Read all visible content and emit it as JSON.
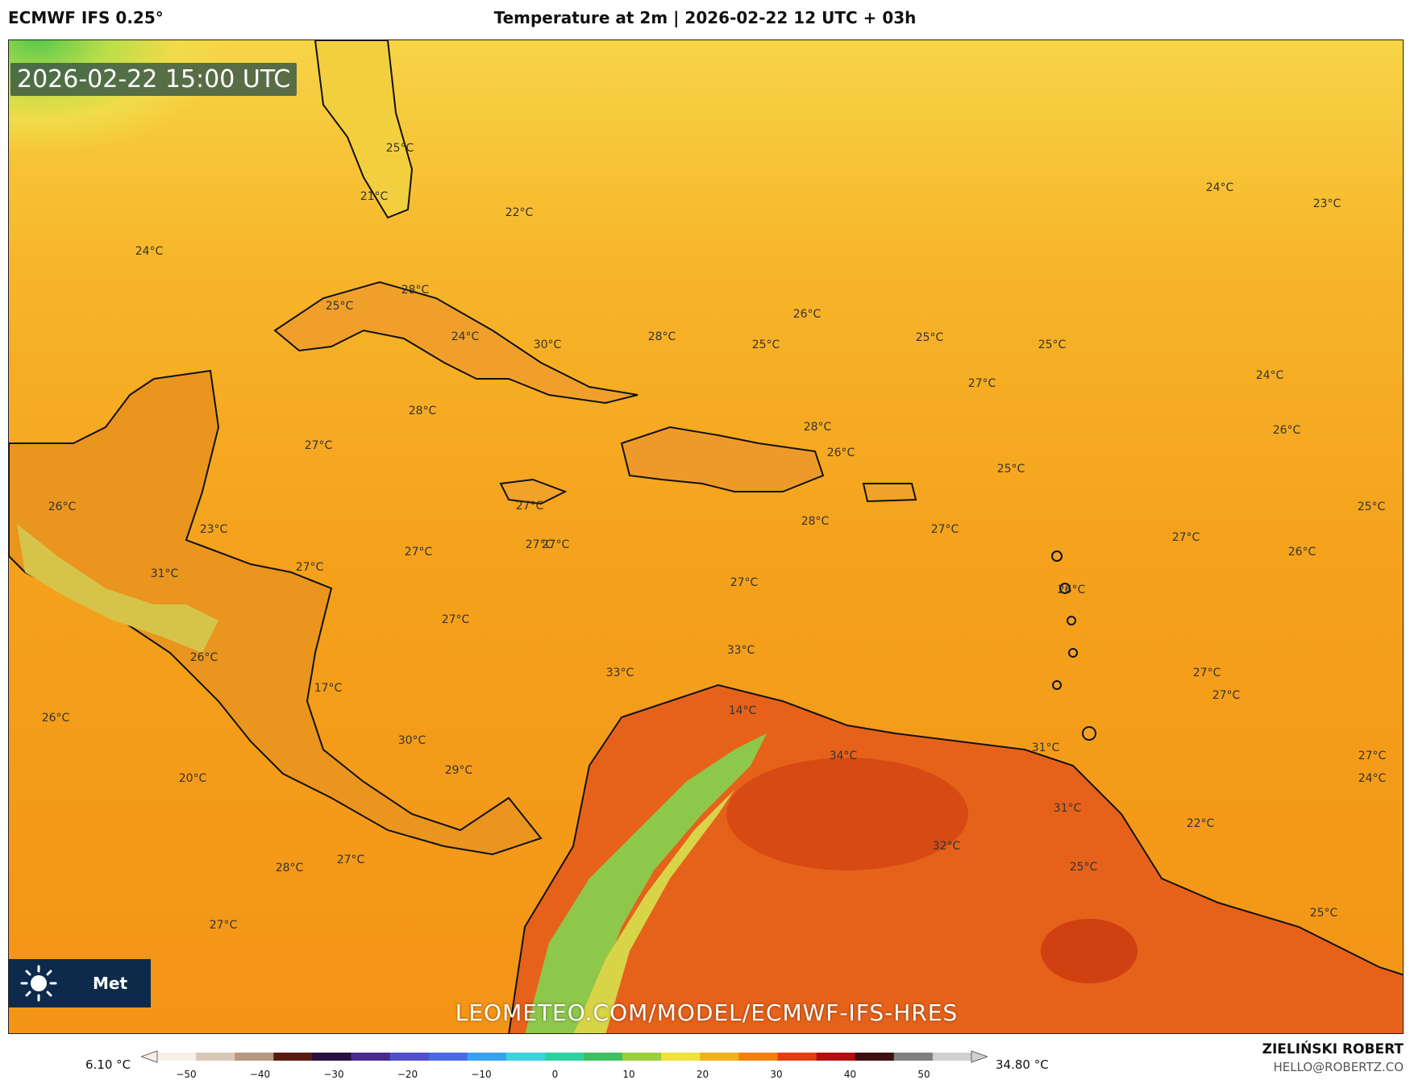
{
  "header": {
    "model": "ECMWF IFS 0.25°",
    "title": "Temperature at 2m | 2026-02-22 12 UTC + 03h"
  },
  "map": {
    "time_label": "2026-02-22 15:00 UTC",
    "watermark": "LEOMETEO.COM/MODEL/ECMWF-IFS-HRES",
    "brand_text": "Met",
    "labels": [
      "25°C",
      "21°C",
      "22°C",
      "24°C",
      "28°C",
      "25°C",
      "24°C",
      "30°C",
      "28°C",
      "28°C",
      "26°C",
      "25°C",
      "25°C",
      "25°C",
      "24°C",
      "23°C",
      "27°C",
      "24°C",
      "28°C",
      "26°C",
      "26°C",
      "27°C",
      "25°C",
      "27°C",
      "27°C",
      "28°C",
      "27°C",
      "25°C",
      "27°C",
      "23°C",
      "27°C",
      "27°C",
      "26°C",
      "27°C",
      "26°C",
      "31°C",
      "27°C",
      "26°C",
      "26°C",
      "27°C",
      "33°C",
      "33°C",
      "27°C",
      "17°C",
      "14°C",
      "26°C",
      "30°C",
      "34°C",
      "31°C",
      "27°C",
      "27°C",
      "24°C",
      "29°C",
      "20°C",
      "31°C",
      "22°C",
      "32°C",
      "25°C",
      "28°C",
      "27°C",
      "25°C",
      "27°C"
    ]
  },
  "colorbar": {
    "min_label": "6.10 °C",
    "max_label": "34.80 °C",
    "ticks": [
      "−50",
      "−40",
      "−30",
      "−20",
      "−10",
      "0",
      "10",
      "20",
      "30",
      "40",
      "50"
    ],
    "colors": [
      "#f5f0e6",
      "#d8c8b8",
      "#b89880",
      "#5a1a10",
      "#2a1040",
      "#4a2a90",
      "#5050c8",
      "#4a6ae0",
      "#3aa0f0",
      "#40d0e0",
      "#30d0a0",
      "#40c060",
      "#9ad040",
      "#f0e040",
      "#f0b020",
      "#f08010",
      "#e04010",
      "#b01010",
      "#401010",
      "#808080",
      "#d0d0d0"
    ]
  },
  "footer": {
    "author": "ZIELIŃSKI ROBERT",
    "email": "HELLO@ROBERTZ.CO"
  },
  "colors": {
    "ocean_warm": "#f6a21e",
    "land_hot": "#e85a18",
    "land_cool": "#8ac840",
    "north_cool": "#f3e24a"
  }
}
